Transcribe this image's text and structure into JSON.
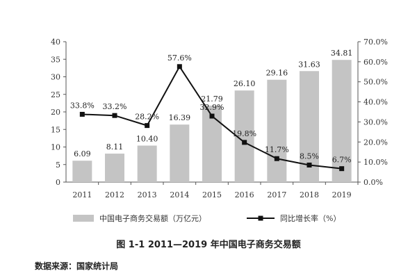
{
  "caption": "图 1-1   2011—2019 年中国电子商务交易额",
  "source": "数据来源：国家统计局",
  "colors": {
    "bar": "#c4c4c4",
    "line": "#111111",
    "axis": "#555555"
  },
  "chart_data": {
    "type": "bar",
    "categories": [
      "2011",
      "2012",
      "2013",
      "2014",
      "2015",
      "2016",
      "2017",
      "2018",
      "2019"
    ],
    "series": [
      {
        "name": "中国电子商务交易额（万亿元）",
        "type": "bar",
        "axis": "left",
        "values": [
          6.09,
          8.11,
          10.4,
          16.39,
          21.79,
          26.1,
          29.16,
          31.63,
          34.81
        ],
        "labels": [
          "6.09",
          "8.11",
          "10.40",
          "16.39",
          "21.79",
          "26.10",
          "29.16",
          "31.63",
          "34.81"
        ]
      },
      {
        "name": "同比增长率（%）",
        "type": "line",
        "axis": "right",
        "values": [
          33.8,
          33.2,
          28.2,
          57.6,
          32.9,
          19.8,
          11.7,
          8.5,
          6.7
        ],
        "labels": [
          "33.8%",
          "33.2%",
          "28.2%",
          "57.6%",
          "32.9%",
          "19.8%",
          "11.7%",
          "8.5%",
          "6.7%"
        ]
      }
    ],
    "y_left": {
      "ylim": [
        0,
        40
      ],
      "ticks": [
        "0",
        "5",
        "10",
        "15",
        "20",
        "25",
        "30",
        "35",
        "40"
      ]
    },
    "y_right": {
      "ylim": [
        0,
        70
      ],
      "ticks": [
        "0.0%",
        "10.0%",
        "20.0%",
        "30.0%",
        "40.0%",
        "50.0%",
        "60.0%",
        "70.0%"
      ]
    },
    "legend_position": "bottom",
    "grid": false
  }
}
